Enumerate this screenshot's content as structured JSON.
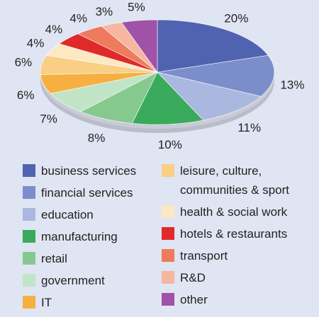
{
  "chart_data": {
    "type": "pie",
    "categories": [
      "business services",
      "financial services",
      "education",
      "manufacturing",
      "retail",
      "government",
      "IT",
      "leisure, culture, communities & sport",
      "health & social work",
      "hotels & restaurants",
      "transport",
      "R&D",
      "other"
    ],
    "values": [
      20,
      13,
      11,
      10,
      8,
      7,
      6,
      6,
      4,
      4,
      4,
      3,
      5
    ],
    "value_labels": [
      "20%",
      "13%",
      "11%",
      "10%",
      "8%",
      "7%",
      "6%",
      "6%",
      "4%",
      "4%",
      "4%",
      "3%",
      "5%"
    ],
    "colors": [
      "#4f63b0",
      "#7b8ecb",
      "#aab8e0",
      "#3aaa5c",
      "#86c98f",
      "#c2e4c6",
      "#f6b042",
      "#f9cf86",
      "#fde8c4",
      "#e02a2a",
      "#ee7b5c",
      "#f6b6a0",
      "#a052a8"
    ]
  }
}
